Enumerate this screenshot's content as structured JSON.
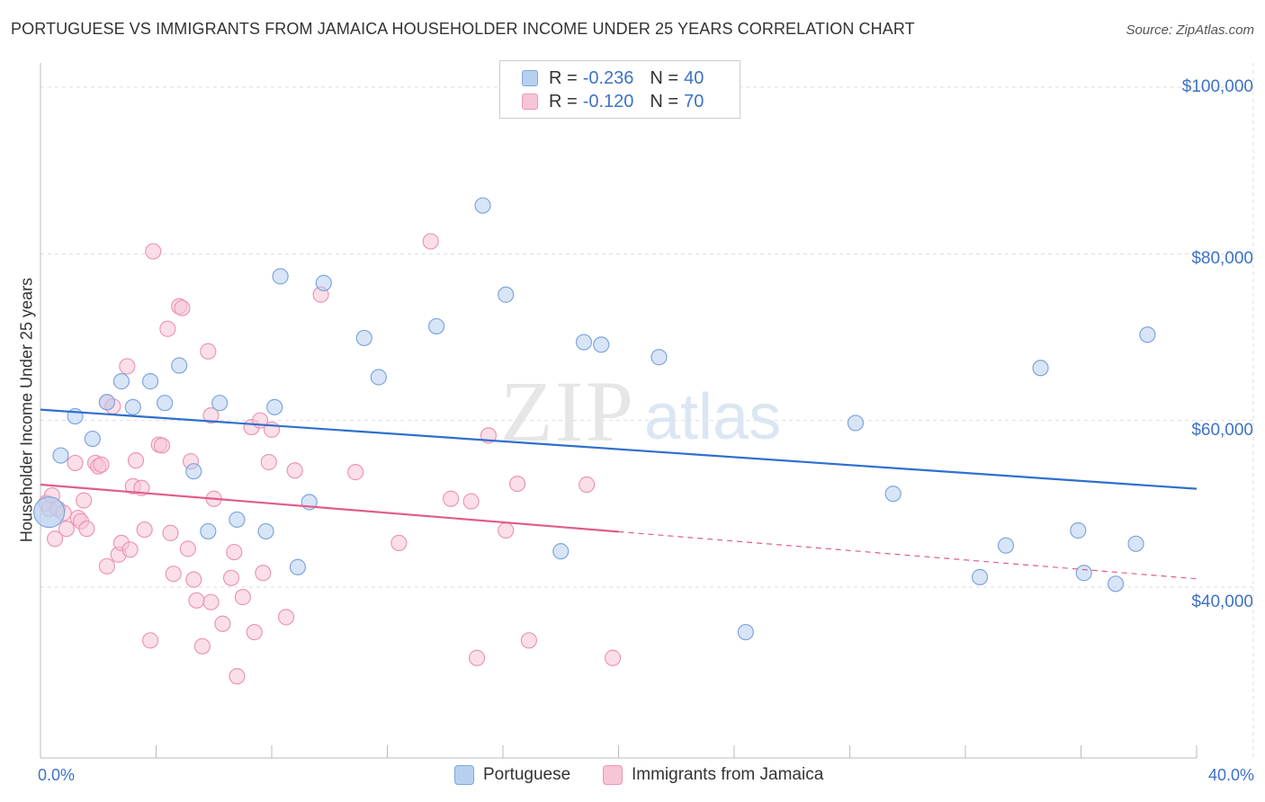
{
  "title": "PORTUGUESE VS IMMIGRANTS FROM JAMAICA HOUSEHOLDER INCOME UNDER 25 YEARS CORRELATION CHART",
  "source": "Source: ZipAtlas.com",
  "watermark": {
    "zip": "ZIP",
    "atlas": "atlas"
  },
  "legend": {
    "series1": {
      "r_label": "R =",
      "r_value": "-0.236",
      "n_label": "N =",
      "n_value": "40"
    },
    "series2": {
      "r_label": "R =",
      "r_value": "-0.120",
      "n_label": "N =",
      "n_value": "70"
    }
  },
  "bottom_legend": [
    "Portuguese",
    "Immigrants from Jamaica"
  ],
  "colors": {
    "blue_fill": "#b8d0f0",
    "blue_stroke": "#7ea6de",
    "blue_line": "#2f6fce",
    "pink_fill": "#f7c5d5",
    "pink_stroke": "#ec96b3",
    "pink_line": "#e05c8a",
    "grid": "#dddddd",
    "axis_text": "#3d72c7"
  },
  "chart_data": {
    "type": "scatter",
    "title": "PORTUGUESE VS IMMIGRANTS FROM JAMAICA HOUSEHOLDER INCOME UNDER 25 YEARS CORRELATION CHART",
    "xlabel": "",
    "ylabel": "Householder Income Under 25 years",
    "x_tick_labels": [
      "0.0%",
      "40.0%"
    ],
    "y_tick_labels": [
      "$100,000",
      "$80,000",
      "$60,000",
      "$40,000"
    ],
    "y_ticks": [
      100000,
      80000,
      60000,
      40000
    ],
    "xlim": [
      0,
      40
    ],
    "ylim": [
      20000,
      102000
    ],
    "grid": true,
    "series": [
      {
        "name": "Portuguese",
        "color": "blue",
        "trend": {
          "x": [
            0,
            40
          ],
          "y": [
            61300,
            51800
          ],
          "dashed_from": null
        },
        "points": [
          [
            0.3,
            49000,
            "large"
          ],
          [
            0.7,
            55800
          ],
          [
            1.2,
            60500
          ],
          [
            1.8,
            57800
          ],
          [
            2.3,
            62200
          ],
          [
            2.8,
            64700
          ],
          [
            3.2,
            61600
          ],
          [
            3.8,
            64700
          ],
          [
            4.3,
            62100
          ],
          [
            4.8,
            66600
          ],
          [
            5.3,
            53900
          ],
          [
            5.8,
            46700
          ],
          [
            6.2,
            62100
          ],
          [
            6.8,
            48100
          ],
          [
            7.8,
            46700
          ],
          [
            8.3,
            77300
          ],
          [
            8.9,
            42400
          ],
          [
            9.3,
            50200
          ],
          [
            9.8,
            76500
          ],
          [
            11.2,
            69900
          ],
          [
            11.7,
            65200
          ],
          [
            13.7,
            71300
          ],
          [
            15.3,
            85800
          ],
          [
            16.1,
            75100
          ],
          [
            18.0,
            44300
          ],
          [
            18.8,
            69400
          ],
          [
            19.4,
            69100
          ],
          [
            21.4,
            67600
          ],
          [
            24.4,
            34600
          ],
          [
            28.2,
            59700
          ],
          [
            29.5,
            51200
          ],
          [
            32.5,
            41200
          ],
          [
            33.4,
            45000
          ],
          [
            34.6,
            66300
          ],
          [
            35.9,
            46800
          ],
          [
            36.1,
            41700
          ],
          [
            37.2,
            40400
          ],
          [
            37.9,
            45200
          ],
          [
            38.3,
            70300
          ],
          [
            8.1,
            61600
          ]
        ]
      },
      {
        "name": "Immigrants from Jamaica",
        "color": "pink",
        "trend": {
          "x": [
            0,
            40
          ],
          "y": [
            52300,
            41000
          ],
          "dashed_from": 20
        },
        "points": [
          [
            0.2,
            50100
          ],
          [
            0.3,
            49400
          ],
          [
            0.4,
            51000
          ],
          [
            0.5,
            45800
          ],
          [
            0.6,
            49400
          ],
          [
            0.9,
            47000
          ],
          [
            1.2,
            54900
          ],
          [
            1.3,
            48300
          ],
          [
            1.4,
            47900
          ],
          [
            1.5,
            50400
          ],
          [
            1.6,
            47000
          ],
          [
            1.9,
            54900
          ],
          [
            2.0,
            54500
          ],
          [
            2.3,
            62200
          ],
          [
            2.3,
            42500
          ],
          [
            2.5,
            61700
          ],
          [
            2.7,
            43900
          ],
          [
            2.8,
            45300
          ],
          [
            3.0,
            66500
          ],
          [
            3.1,
            44500
          ],
          [
            3.2,
            52100
          ],
          [
            3.3,
            55200
          ],
          [
            3.5,
            51900
          ],
          [
            3.6,
            46900
          ],
          [
            3.8,
            33600
          ],
          [
            3.9,
            80300
          ],
          [
            4.1,
            57100
          ],
          [
            4.2,
            57000
          ],
          [
            4.4,
            71000
          ],
          [
            4.5,
            46500
          ],
          [
            4.6,
            41600
          ],
          [
            4.8,
            73700
          ],
          [
            4.9,
            73500
          ],
          [
            5.1,
            44600
          ],
          [
            5.2,
            55100
          ],
          [
            5.3,
            40900
          ],
          [
            5.4,
            38400
          ],
          [
            5.6,
            32900
          ],
          [
            5.8,
            68300
          ],
          [
            5.9,
            38200
          ],
          [
            5.9,
            60600
          ],
          [
            6.0,
            50600
          ],
          [
            6.3,
            35600
          ],
          [
            6.6,
            41100
          ],
          [
            6.7,
            44200
          ],
          [
            6.8,
            29300
          ],
          [
            7.0,
            38800
          ],
          [
            7.3,
            59200
          ],
          [
            7.4,
            34600
          ],
          [
            7.6,
            60000
          ],
          [
            7.7,
            41700
          ],
          [
            7.9,
            55000
          ],
          [
            8.0,
            58900
          ],
          [
            8.5,
            36400
          ],
          [
            8.8,
            54000
          ],
          [
            9.7,
            75100
          ],
          [
            10.9,
            53800
          ],
          [
            12.4,
            45300
          ],
          [
            13.5,
            81500
          ],
          [
            14.2,
            50600
          ],
          [
            14.9,
            50300
          ],
          [
            15.1,
            31500
          ],
          [
            15.5,
            58200
          ],
          [
            16.1,
            46800
          ],
          [
            16.5,
            52400
          ],
          [
            16.9,
            33600
          ],
          [
            18.9,
            52300
          ],
          [
            19.8,
            31500
          ],
          [
            2.1,
            54700
          ],
          [
            0.8,
            48900
          ]
        ]
      }
    ]
  }
}
